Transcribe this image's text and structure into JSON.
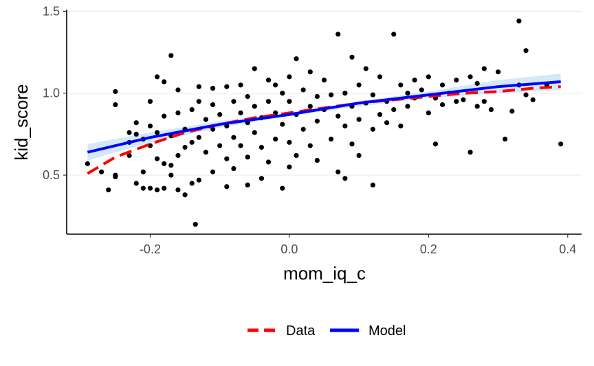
{
  "chart_data": {
    "type": "scatter",
    "xlabel": "mom_iq_c",
    "ylabel": "kid_score",
    "xlim": [
      -0.32,
      0.42
    ],
    "ylim": [
      0.14,
      1.51
    ],
    "xticks": [
      -0.2,
      0.0,
      0.2,
      0.4
    ],
    "xtick_labels": [
      "-0.2",
      "0.0",
      "0.2",
      "0.4"
    ],
    "yticks": [
      0.5,
      1.0,
      1.5
    ],
    "ytick_labels": [
      "0.5",
      "1.0",
      "1.5"
    ],
    "grid": "horizontal",
    "legend_position": "bottom",
    "colors": {
      "data_line": "#ff0000",
      "model_line": "#0000ff",
      "ribbon": "#d4e9f7",
      "points": "#000000"
    },
    "legend": [
      {
        "label": "Data",
        "color": "#ff0000",
        "style": "dashed"
      },
      {
        "label": "Model",
        "color": "#0000ff",
        "style": "solid"
      }
    ],
    "series": [
      {
        "name": "Data",
        "style": "dashed",
        "x": [
          -0.29,
          -0.25,
          -0.2,
          -0.15,
          -0.1,
          -0.05,
          0.0,
          0.05,
          0.1,
          0.15,
          0.2,
          0.25,
          0.3,
          0.35,
          0.39
        ],
        "y": [
          0.51,
          0.61,
          0.69,
          0.76,
          0.81,
          0.85,
          0.88,
          0.91,
          0.94,
          0.96,
          0.98,
          1.0,
          1.01,
          1.03,
          1.04
        ]
      },
      {
        "name": "Model",
        "style": "solid",
        "x": [
          -0.29,
          -0.2,
          -0.1,
          0.0,
          0.1,
          0.2,
          0.3,
          0.39
        ],
        "y": [
          0.64,
          0.73,
          0.81,
          0.87,
          0.94,
          0.99,
          1.04,
          1.07
        ],
        "ribbon_lower": [
          0.59,
          0.7,
          0.79,
          0.86,
          0.92,
          0.97,
          1.0,
          1.02
        ],
        "ribbon_upper": [
          0.69,
          0.76,
          0.83,
          0.88,
          0.95,
          1.01,
          1.08,
          1.12
        ]
      }
    ],
    "points": [
      [
        -0.29,
        0.57
      ],
      [
        -0.27,
        0.52
      ],
      [
        -0.26,
        0.41
      ],
      [
        -0.25,
        1.01
      ],
      [
        -0.25,
        0.93
      ],
      [
        -0.25,
        0.5
      ],
      [
        -0.25,
        0.49
      ],
      [
        -0.23,
        0.76
      ],
      [
        -0.23,
        0.7
      ],
      [
        -0.23,
        0.62
      ],
      [
        -0.22,
        0.82
      ],
      [
        -0.22,
        0.75
      ],
      [
        -0.22,
        0.45
      ],
      [
        -0.21,
        0.72
      ],
      [
        -0.21,
        0.52
      ],
      [
        -0.21,
        0.42
      ],
      [
        -0.2,
        0.95
      ],
      [
        -0.2,
        0.8
      ],
      [
        -0.2,
        0.68
      ],
      [
        -0.2,
        0.42
      ],
      [
        -0.19,
        1.1
      ],
      [
        -0.19,
        0.6
      ],
      [
        -0.19,
        0.41
      ],
      [
        -0.19,
        0.76
      ],
      [
        -0.18,
        1.07
      ],
      [
        -0.18,
        0.86
      ],
      [
        -0.18,
        0.57
      ],
      [
        -0.18,
        0.42
      ],
      [
        -0.17,
        1.23
      ],
      [
        -0.17,
        0.74
      ],
      [
        -0.17,
        0.56
      ],
      [
        -0.17,
        0.5
      ],
      [
        -0.16,
        1.02
      ],
      [
        -0.16,
        0.88
      ],
      [
        -0.16,
        0.62
      ],
      [
        -0.16,
        0.41
      ],
      [
        -0.15,
        0.78
      ],
      [
        -0.15,
        0.67
      ],
      [
        -0.15,
        0.38
      ],
      [
        -0.14,
        0.9
      ],
      [
        -0.14,
        0.7
      ],
      [
        -0.14,
        0.45
      ],
      [
        -0.135,
        0.2
      ],
      [
        -0.13,
        1.04
      ],
      [
        -0.13,
        0.95
      ],
      [
        -0.13,
        0.73
      ],
      [
        -0.13,
        0.47
      ],
      [
        -0.12,
        0.84
      ],
      [
        -0.12,
        0.64
      ],
      [
        -0.11,
        1.03
      ],
      [
        -0.11,
        0.93
      ],
      [
        -0.11,
        0.78
      ],
      [
        -0.11,
        0.52
      ],
      [
        -0.1,
        0.87
      ],
      [
        -0.1,
        0.68
      ],
      [
        -0.09,
        1.04
      ],
      [
        -0.09,
        0.8
      ],
      [
        -0.09,
        0.6
      ],
      [
        -0.09,
        0.43
      ],
      [
        -0.08,
        0.95
      ],
      [
        -0.08,
        0.73
      ],
      [
        -0.08,
        0.54
      ],
      [
        -0.07,
        1.05
      ],
      [
        -0.07,
        0.88
      ],
      [
        -0.07,
        0.68
      ],
      [
        -0.06,
        0.98
      ],
      [
        -0.06,
        0.82
      ],
      [
        -0.06,
        0.61
      ],
      [
        -0.06,
        0.44
      ],
      [
        -0.05,
        1.15
      ],
      [
        -0.05,
        0.92
      ],
      [
        -0.05,
        0.76
      ],
      [
        -0.04,
        0.85
      ],
      [
        -0.04,
        0.67
      ],
      [
        -0.04,
        0.48
      ],
      [
        -0.03,
        1.08
      ],
      [
        -0.03,
        0.95
      ],
      [
        -0.03,
        0.58
      ],
      [
        -0.02,
        1.05
      ],
      [
        -0.02,
        0.88
      ],
      [
        -0.02,
        0.72
      ],
      [
        -0.01,
        1.0
      ],
      [
        -0.01,
        0.81
      ],
      [
        -0.01,
        0.42
      ],
      [
        0.0,
        1.1
      ],
      [
        0.0,
        0.95
      ],
      [
        0.0,
        0.7
      ],
      [
        0.0,
        0.55
      ],
      [
        0.01,
        1.21
      ],
      [
        0.01,
        0.87
      ],
      [
        0.01,
        0.62
      ],
      [
        0.02,
        1.02
      ],
      [
        0.02,
        0.78
      ],
      [
        0.03,
        1.13
      ],
      [
        0.03,
        0.92
      ],
      [
        0.03,
        0.68
      ],
      [
        0.04,
        0.98
      ],
      [
        0.04,
        0.83
      ],
      [
        0.04,
        0.59
      ],
      [
        0.05,
        1.08
      ],
      [
        0.05,
        0.9
      ],
      [
        0.06,
        0.99
      ],
      [
        0.06,
        0.72
      ],
      [
        0.07,
        1.36
      ],
      [
        0.07,
        0.86
      ],
      [
        0.07,
        0.52
      ],
      [
        0.08,
        1.0
      ],
      [
        0.08,
        0.8
      ],
      [
        0.08,
        0.48
      ],
      [
        0.09,
        1.22
      ],
      [
        0.09,
        0.92
      ],
      [
        0.09,
        0.69
      ],
      [
        0.1,
        1.05
      ],
      [
        0.1,
        0.84
      ],
      [
        0.1,
        0.62
      ],
      [
        0.11,
        1.15
      ],
      [
        0.11,
        0.94
      ],
      [
        0.12,
        0.99
      ],
      [
        0.12,
        0.78
      ],
      [
        0.12,
        0.44
      ],
      [
        0.13,
        1.1
      ],
      [
        0.13,
        0.87
      ],
      [
        0.14,
        0.95
      ],
      [
        0.14,
        0.82
      ],
      [
        0.15,
        1.36
      ],
      [
        0.15,
        0.9
      ],
      [
        0.16,
        1.05
      ],
      [
        0.16,
        0.8
      ],
      [
        0.17,
        1.0
      ],
      [
        0.17,
        0.92
      ],
      [
        0.18,
        1.08
      ],
      [
        0.18,
        0.97
      ],
      [
        0.19,
        1.02
      ],
      [
        0.2,
        1.1
      ],
      [
        0.2,
        0.88
      ],
      [
        0.21,
        0.97
      ],
      [
        0.21,
        0.69
      ],
      [
        0.22,
        1.05
      ],
      [
        0.22,
        0.93
      ],
      [
        0.23,
        1.0
      ],
      [
        0.24,
        1.08
      ],
      [
        0.24,
        0.95
      ],
      [
        0.25,
        0.96
      ],
      [
        0.26,
        1.1
      ],
      [
        0.26,
        0.64
      ],
      [
        0.27,
        1.06
      ],
      [
        0.27,
        0.92
      ],
      [
        0.28,
        1.15
      ],
      [
        0.28,
        0.95
      ],
      [
        0.29,
        0.9
      ],
      [
        0.3,
        1.13
      ],
      [
        0.31,
        0.72
      ],
      [
        0.32,
        0.89
      ],
      [
        0.33,
        1.44
      ],
      [
        0.33,
        1.05
      ],
      [
        0.34,
        1.26
      ],
      [
        0.34,
        0.99
      ],
      [
        0.35,
        0.96
      ],
      [
        0.37,
        1.05
      ],
      [
        0.39,
        0.69
      ]
    ]
  }
}
